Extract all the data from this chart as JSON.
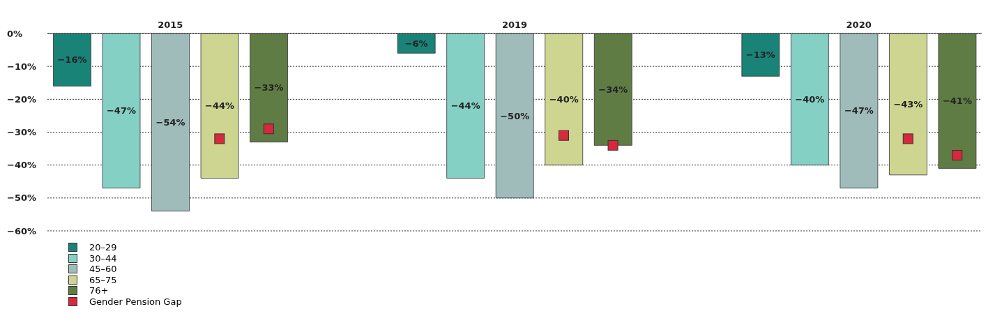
{
  "chart_data": {
    "type": "bar",
    "stacked": true,
    "categories": [
      null,
      null,
      "2015",
      null,
      null,
      null,
      null,
      null,
      null,
      "2019",
      null,
      null,
      null,
      null,
      null,
      null,
      "2020",
      null,
      null
    ],
    "series": [
      {
        "name": "20–29",
        "color": "#1a8377",
        "values": [
          -16,
          null,
          null,
          null,
          null,
          null,
          null,
          -6,
          null,
          null,
          null,
          null,
          null,
          null,
          -13,
          null,
          null,
          null,
          null
        ],
        "value_labels": [
          "−16%",
          null,
          null,
          null,
          null,
          null,
          null,
          "−6%",
          null,
          null,
          null,
          null,
          null,
          null,
          "−13%",
          null,
          null,
          null,
          null
        ]
      },
      {
        "name": "30–44",
        "color": "#85d0c4",
        "values": [
          null,
          -47,
          null,
          null,
          null,
          null,
          null,
          null,
          -44,
          null,
          null,
          null,
          null,
          null,
          null,
          -40,
          null,
          null,
          null
        ],
        "value_labels": [
          null,
          "−47%",
          null,
          null,
          null,
          null,
          null,
          null,
          "−44%",
          null,
          null,
          null,
          null,
          null,
          null,
          "−40%",
          null,
          null,
          null
        ]
      },
      {
        "name": "45–60",
        "color": "#9fbcba",
        "values": [
          null,
          null,
          -54,
          null,
          null,
          null,
          null,
          null,
          null,
          -50,
          null,
          null,
          null,
          null,
          null,
          null,
          -47,
          null,
          null
        ],
        "value_labels": [
          null,
          null,
          "−54%",
          null,
          null,
          null,
          null,
          null,
          null,
          "−50%",
          null,
          null,
          null,
          null,
          null,
          null,
          "−47%",
          null,
          null
        ]
      },
      {
        "name": "65–75",
        "color": "#cdd591",
        "values": [
          null,
          null,
          null,
          -44,
          null,
          null,
          null,
          null,
          null,
          null,
          -40,
          null,
          null,
          null,
          null,
          null,
          null,
          -43,
          null
        ],
        "value_labels": [
          null,
          null,
          null,
          "−44%",
          null,
          null,
          null,
          null,
          null,
          null,
          "−40%",
          null,
          null,
          null,
          null,
          null,
          null,
          "−43%",
          null
        ]
      },
      {
        "name": "76+",
        "color": "#607c45",
        "values": [
          null,
          null,
          null,
          null,
          -33,
          null,
          null,
          null,
          null,
          null,
          null,
          -34,
          null,
          null,
          null,
          null,
          null,
          null,
          -41
        ],
        "value_labels": [
          null,
          null,
          null,
          null,
          "−33%",
          null,
          null,
          null,
          null,
          null,
          null,
          "−34%",
          null,
          null,
          null,
          null,
          null,
          null,
          "−41%"
        ]
      },
      {
        "name": "Gender Pension Gap",
        "type": "scatter",
        "marker": "square",
        "color": "#d9283c",
        "values": [
          null,
          null,
          null,
          -32,
          -29,
          null,
          null,
          null,
          null,
          null,
          -31,
          -34,
          null,
          null,
          null,
          null,
          null,
          -32,
          -37
        ]
      }
    ],
    "ylim": [
      -60,
      0
    ],
    "yticks": [
      {
        "value": 0,
        "label": "0%"
      },
      {
        "value": -10,
        "label": "−10%"
      },
      {
        "value": -20,
        "label": "−20%"
      },
      {
        "value": -30,
        "label": "−30%"
      },
      {
        "value": -40,
        "label": "−40%"
      },
      {
        "value": -50,
        "label": "−50%"
      },
      {
        "value": -60,
        "label": "−60%"
      }
    ],
    "grid": "y",
    "legend": "bottom left"
  }
}
